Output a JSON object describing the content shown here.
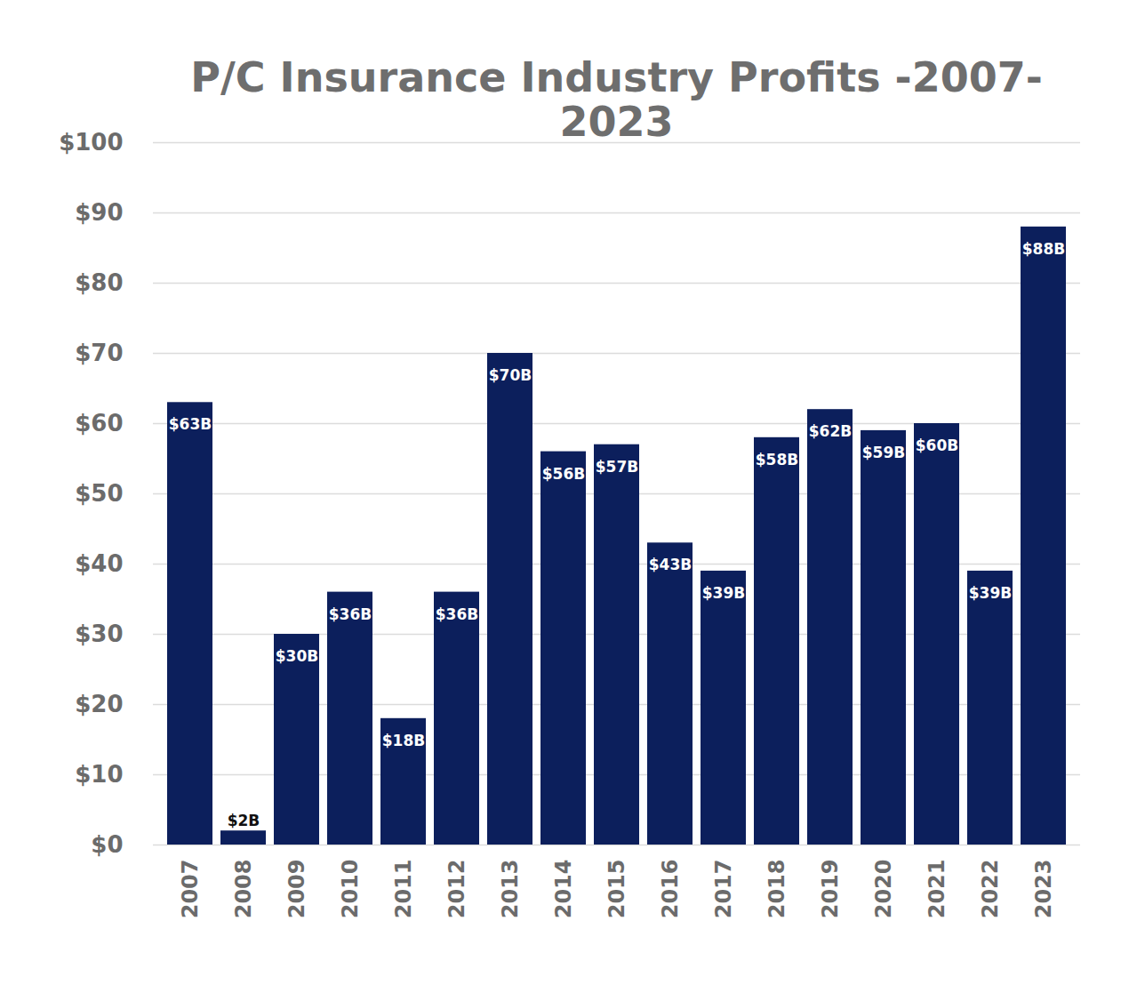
{
  "chart_data": {
    "type": "bar",
    "title": "P/C Insurance Industry Profits -2007-2023",
    "categories": [
      "2007",
      "2008",
      "2009",
      "2010",
      "2011",
      "2012",
      "2013",
      "2014",
      "2015",
      "2016",
      "2017",
      "2018",
      "2019",
      "2020",
      "2021",
      "2022",
      "2023"
    ],
    "values": [
      63,
      2,
      30,
      36,
      18,
      36,
      70,
      56,
      57,
      43,
      39,
      58,
      62,
      59,
      60,
      39,
      88
    ],
    "value_labels": [
      "$63B",
      "$2B",
      "$30B",
      "$36B",
      "$18B",
      "$36B",
      "$70B",
      "$56B",
      "$57B",
      "$43B",
      "$39B",
      "$58B",
      "$62B",
      "$59B",
      "$60B",
      "$39B",
      "$88B"
    ],
    "data_labels": true,
    "color": "#0c1f5c",
    "ylim": [
      0,
      100
    ],
    "yticks": [
      {
        "value": 0,
        "label": "$0"
      },
      {
        "value": 10,
        "label": "$10"
      },
      {
        "value": 20,
        "label": "$20"
      },
      {
        "value": 30,
        "label": "$30"
      },
      {
        "value": 40,
        "label": "$40"
      },
      {
        "value": 50,
        "label": "$50"
      },
      {
        "value": 60,
        "label": "$60"
      },
      {
        "value": 70,
        "label": "$70"
      },
      {
        "value": 80,
        "label": "$80"
      },
      {
        "value": 90,
        "label": "$90"
      },
      {
        "value": 100,
        "label": "$100"
      }
    ],
    "grid": true
  }
}
